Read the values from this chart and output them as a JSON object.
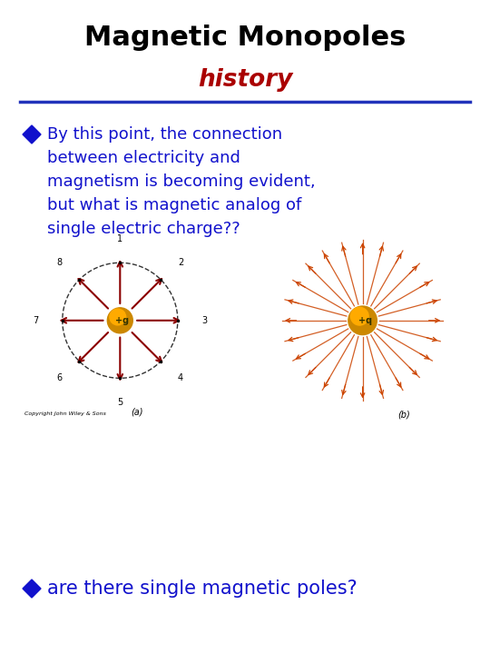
{
  "title": "Magnetic Monopoles",
  "subtitle": "history",
  "title_color": "#000000",
  "subtitle_color": "#aa0000",
  "line_color": "#2233bb",
  "bullet_color": "#1111cc",
  "bullet1_lines": [
    "By this point, the connection",
    "between electricity and",
    "magnetism is becoming evident,",
    "but what is magnetic analog of",
    "single electric charge??"
  ],
  "bullet2_text": "are there single magnetic poles?",
  "bullet_fontsize": 13,
  "bullet2_fontsize": 15,
  "title_fontsize": 22,
  "subtitle_fontsize": 19,
  "background_color": "#ffffff"
}
